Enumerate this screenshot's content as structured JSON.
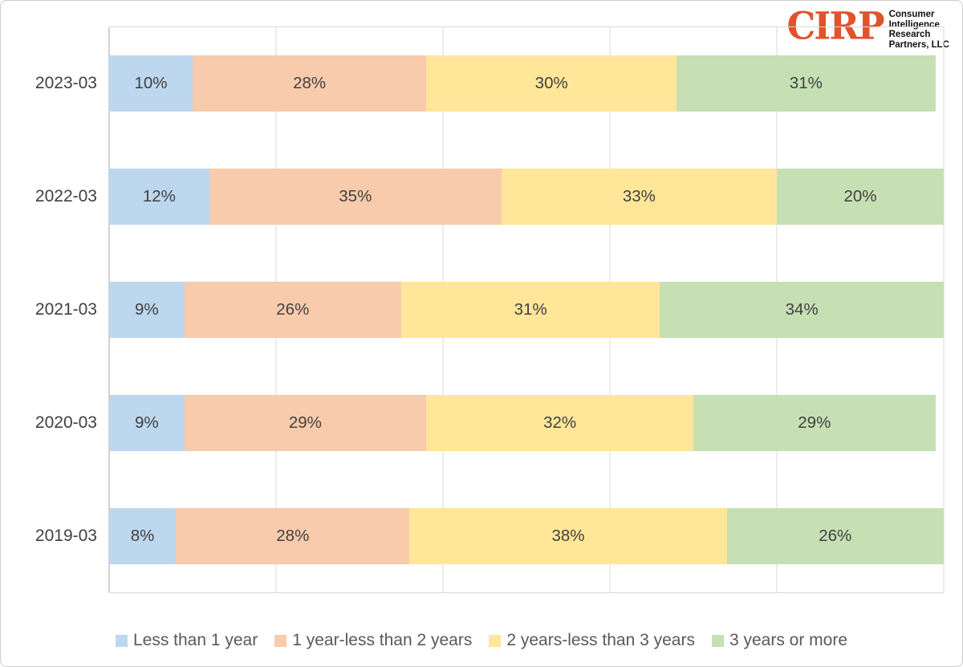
{
  "logo": {
    "brand": "CIRP",
    "brand_color": "#e0532c",
    "tagline_lines": [
      "Consumer",
      "Intelligence",
      "Research",
      "Partners, LLC"
    ]
  },
  "colors": {
    "gridline": "#d9d9d9",
    "axis_line": "#a6a6a6",
    "data_label_text": "#404040",
    "legend_text": "#595959",
    "frame_border": "#cdcdcd"
  },
  "chart_data": {
    "type": "bar",
    "orientation": "horizontal",
    "stacked": true,
    "title": "",
    "xlabel": "",
    "ylabel": "",
    "xlim": [
      0,
      100
    ],
    "gridline_step": 20,
    "grid": true,
    "legend_position": "bottom",
    "value_suffix": "%",
    "categories": [
      "2023-03",
      "2022-03",
      "2021-03",
      "2020-03",
      "2019-03"
    ],
    "series": [
      {
        "name": "Less than 1 year",
        "color": "#bdd7ee",
        "values": [
          10,
          12,
          9,
          9,
          8
        ]
      },
      {
        "name": "1 year-less than 2 years",
        "color": "#f8cbad",
        "values": [
          28,
          35,
          26,
          29,
          28
        ]
      },
      {
        "name": "2 years-less than 3 years",
        "color": "#ffe699",
        "values": [
          30,
          33,
          31,
          32,
          38
        ]
      },
      {
        "name": "3 years or more",
        "color": "#c6e0b4",
        "values": [
          31,
          20,
          34,
          29,
          26
        ]
      }
    ]
  }
}
